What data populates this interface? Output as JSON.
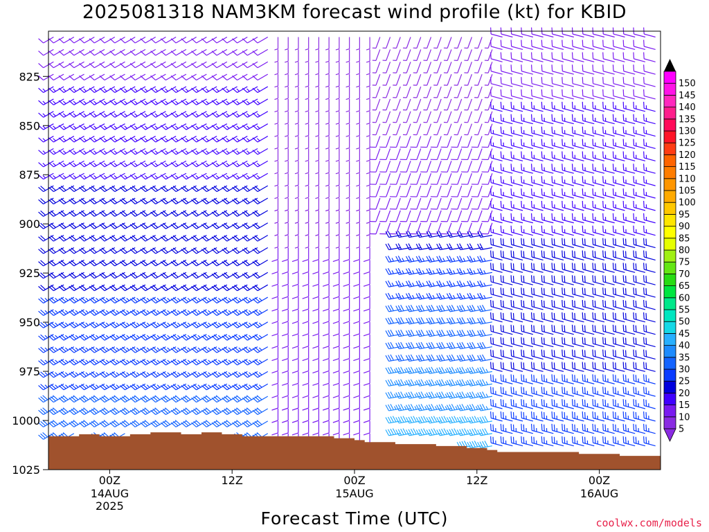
{
  "title": "2025081318 NAM3KM forecast wind profile (kt) for KBID",
  "credit": "coolwx.com/models",
  "chart_data": {
    "type": "wind-barb-profile",
    "title": "2025081318 NAM3KM forecast wind profile (kt) for KBID",
    "xlabel": "Forecast Time (UTC)",
    "ylabel": "",
    "x_range_hours": [
      0,
      60
    ],
    "x_ticks": [
      {
        "hour": 6,
        "label": "00Z",
        "sub": [
          "14AUG",
          "2025"
        ]
      },
      {
        "hour": 18,
        "label": "12Z",
        "sub": []
      },
      {
        "hour": 30,
        "label": "00Z",
        "sub": [
          "15AUG"
        ]
      },
      {
        "hour": 42,
        "label": "12Z",
        "sub": []
      },
      {
        "hour": 54,
        "label": "00Z",
        "sub": [
          "16AUG"
        ]
      }
    ],
    "y_range_hPa": [
      802,
      1025
    ],
    "y_ticks": [
      825,
      850,
      875,
      900,
      925,
      950,
      975,
      1000,
      1025
    ],
    "speed_levels_kt": [
      5,
      10,
      15,
      20,
      25,
      30,
      35,
      40,
      45,
      50,
      55,
      60,
      65,
      70,
      75,
      80,
      85,
      90,
      95,
      100,
      105,
      110,
      115,
      120,
      125,
      130,
      135,
      140,
      145,
      150
    ],
    "speed_colors": [
      "#8a2be2",
      "#7a1af0",
      "#4000ff",
      "#0000dd",
      "#0a3cff",
      "#1464ff",
      "#1e8cff",
      "#28b0ff",
      "#14d8e6",
      "#00e6c0",
      "#00e88a",
      "#00e640",
      "#28dc14",
      "#64e614",
      "#a0f014",
      "#e6ff00",
      "#ffff00",
      "#ffe600",
      "#ffc800",
      "#ffaa00",
      "#ff9600",
      "#ff7d00",
      "#ff6400",
      "#ff3c14",
      "#ff1428",
      "#ff0a5a",
      "#ff1e8c",
      "#ff28be",
      "#ff14e6",
      "#ff00ff"
    ],
    "surface_pressure_hPa": [
      [
        0,
        1008
      ],
      [
        3,
        1007
      ],
      [
        5,
        1008
      ],
      [
        8,
        1007
      ],
      [
        10,
        1006
      ],
      [
        13,
        1007
      ],
      [
        15,
        1006
      ],
      [
        17,
        1007
      ],
      [
        19,
        1008
      ],
      [
        28,
        1009
      ],
      [
        30,
        1010
      ],
      [
        31,
        1011
      ],
      [
        34,
        1012
      ],
      [
        38,
        1013
      ],
      [
        41,
        1014
      ],
      [
        43,
        1015
      ],
      [
        44,
        1016
      ],
      [
        47,
        1016
      ],
      [
        52,
        1017
      ],
      [
        55,
        1017
      ],
      [
        56,
        1018
      ],
      [
        60,
        1017
      ]
    ],
    "wind_regimes": [
      {
        "hours": [
          0,
          22
        ],
        "pressure": [
          802,
          1010
        ],
        "direction_deg": 240,
        "speed_kt": [
          10,
          30
        ]
      },
      {
        "hours": [
          22,
          32
        ],
        "pressure": [
          802,
          1012
        ],
        "direction_deg": 180,
        "speed_kt": [
          5,
          10
        ]
      },
      {
        "hours": [
          32,
          44
        ],
        "pressure": [
          802,
          900
        ],
        "direction_deg": 200,
        "speed_kt": [
          5,
          10
        ]
      },
      {
        "hours": [
          34,
          48
        ],
        "pressure": [
          900,
          1014
        ],
        "direction_deg": 260,
        "speed_kt": [
          20,
          40
        ]
      },
      {
        "hours": [
          44,
          60
        ],
        "pressure": [
          802,
          1017
        ],
        "direction_deg": 285,
        "speed_kt": [
          10,
          25
        ]
      }
    ]
  }
}
